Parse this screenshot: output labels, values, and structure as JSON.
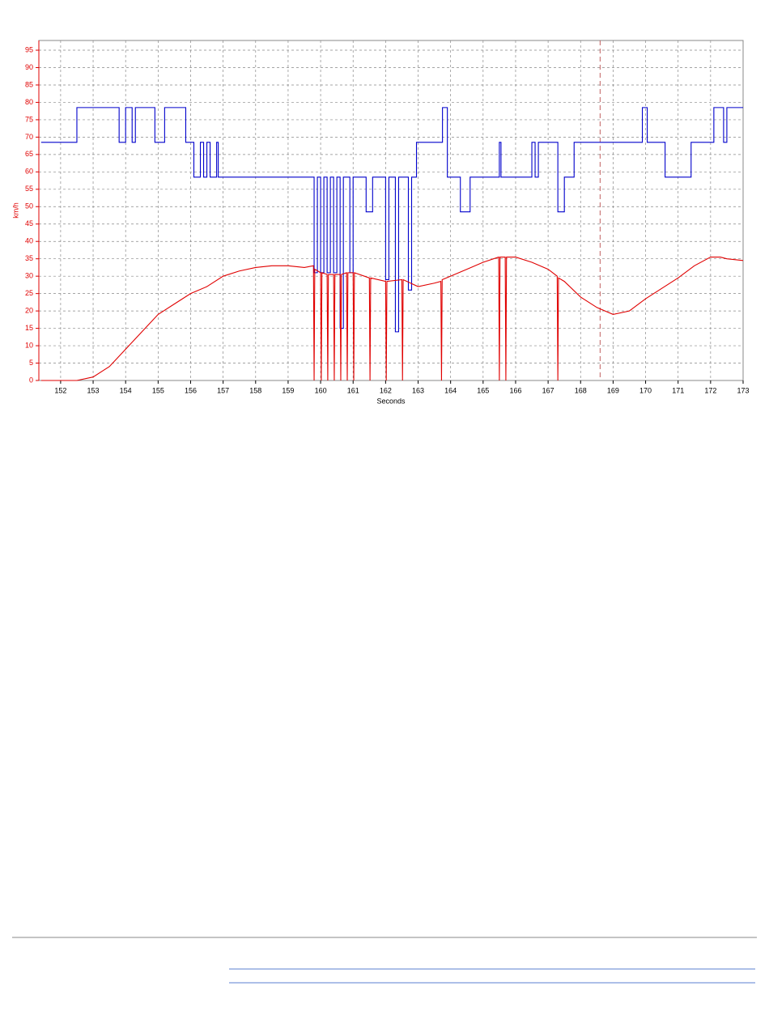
{
  "chart_data": {
    "type": "line",
    "xlabel": "Seconds",
    "ylabel": "km/h",
    "xlim": [
      151.33,
      173
    ],
    "ylim": [
      0,
      97.8
    ],
    "xticks": [
      152,
      153,
      154,
      155,
      156,
      157,
      158,
      159,
      160,
      161,
      162,
      163,
      164,
      165,
      166,
      167,
      168,
      169,
      170,
      171,
      172,
      173
    ],
    "yticks": [
      0,
      5,
      10,
      15,
      20,
      25,
      30,
      35,
      40,
      45,
      50,
      55,
      60,
      65,
      70,
      75,
      80,
      85,
      90,
      95
    ],
    "grid": true,
    "cursor_x": 168.6,
    "series": [
      {
        "color": "#0000cc",
        "step": "post",
        "x": [
          151.4,
          152.5,
          153.8,
          154,
          154.2,
          154.3,
          154.9,
          155.2,
          155.85,
          156.1,
          156.3,
          156.4,
          156.5,
          156.6,
          156.8,
          156.85,
          159.8,
          159.9,
          160,
          160.1,
          160.2,
          160.3,
          160.4,
          160.5,
          160.6,
          160.7,
          160.9,
          161,
          161.4,
          161.6,
          162,
          162.1,
          162.3,
          162.4,
          162.7,
          162.8,
          162.95,
          163.75,
          163.9,
          164.3,
          164.6,
          165.5,
          165.55,
          166.5,
          166.6,
          166.7,
          167.3,
          167.5,
          167.8,
          169.9,
          170.05,
          170.6,
          171.4,
          172.1,
          172.4,
          172.5,
          173
        ],
        "values": [
          68.5,
          78.5,
          68.5,
          78.5,
          68.5,
          78.5,
          68.5,
          78.5,
          68.5,
          58.5,
          68.5,
          58.5,
          68.5,
          58.5,
          68.5,
          58.5,
          31,
          58.5,
          31,
          58.5,
          31,
          58.5,
          31,
          58.5,
          15,
          58.5,
          31,
          58.5,
          48.5,
          58.5,
          29,
          58.5,
          14,
          58.5,
          26,
          58.5,
          68.5,
          78.5,
          58.5,
          48.5,
          58.5,
          68.5,
          58.5,
          68.5,
          58.5,
          68.5,
          48.5,
          58.5,
          68.5,
          78.5,
          68.5,
          58.5,
          68.5,
          78.5,
          68.5,
          78.5,
          78.5
        ]
      },
      {
        "color": "#e00000",
        "x": [
          151.4,
          152.5,
          153,
          153.5,
          154,
          154.5,
          155,
          155.5,
          156,
          156.5,
          157,
          157.5,
          158,
          158.5,
          159,
          159.5,
          159.78,
          159.8,
          159.82,
          160,
          160.02,
          160.04,
          160.2,
          160.22,
          160.24,
          160.4,
          160.42,
          160.44,
          160.6,
          160.62,
          160.64,
          160.8,
          160.82,
          160.84,
          161,
          161.02,
          161.04,
          161.5,
          161.52,
          161.54,
          162,
          162.02,
          162.04,
          162.5,
          162.52,
          162.54,
          163,
          163.5,
          163.7,
          163.72,
          163.74,
          164,
          164.5,
          165,
          165.48,
          165.5,
          165.52,
          165.68,
          165.7,
          165.72,
          166,
          166.5,
          167,
          167.28,
          167.3,
          167.32,
          167.5,
          168,
          168.5,
          169,
          169.5,
          170,
          170.5,
          171,
          171.5,
          172,
          172.3,
          172.5,
          173
        ],
        "values": [
          0,
          0,
          1,
          4,
          9,
          14,
          19,
          22,
          25,
          27,
          30,
          31.5,
          32.5,
          33,
          33,
          32.5,
          33,
          0,
          32,
          31,
          0,
          31,
          30.5,
          0,
          30.5,
          30.5,
          0,
          30.5,
          30.5,
          0,
          30.5,
          31,
          0,
          31,
          31,
          0,
          31,
          29.5,
          0,
          29.5,
          28.5,
          0,
          28.5,
          29,
          0,
          29,
          27,
          28,
          28.5,
          0,
          29,
          30,
          32,
          34,
          35.5,
          0,
          35.5,
          35.5,
          0,
          35.5,
          35.5,
          34,
          32,
          30,
          0,
          29.5,
          28.5,
          24,
          21,
          19,
          20,
          23.5,
          26.5,
          29.5,
          33,
          35.5,
          35.5,
          35,
          34.5
        ]
      }
    ]
  }
}
